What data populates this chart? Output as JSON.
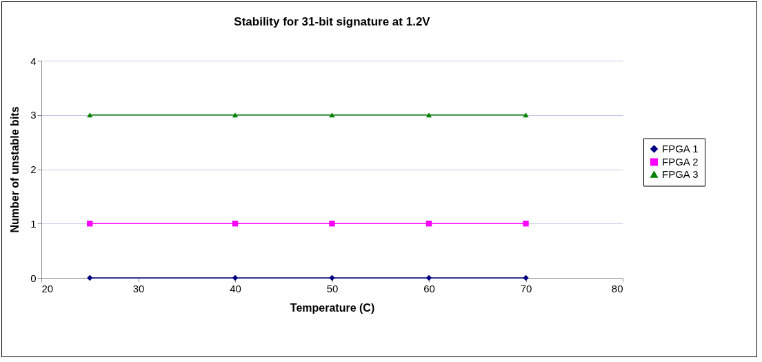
{
  "chart_data": {
    "type": "line",
    "title": "Stability for 31-bit signature at 1.2V",
    "xlabel": "Temperature (C)",
    "ylabel": "Number of unstable bits",
    "x": [
      25,
      40,
      50,
      60,
      70
    ],
    "series": [
      {
        "name": "FPGA 1",
        "color": "#000080",
        "marker": "diamond",
        "values": [
          0,
          0,
          0,
          0,
          0
        ]
      },
      {
        "name": "FPGA 2",
        "color": "#ff00ff",
        "marker": "square",
        "values": [
          1,
          1,
          1,
          1,
          1
        ]
      },
      {
        "name": "FPGA 3",
        "color": "#008000",
        "marker": "triangle",
        "values": [
          3,
          3,
          3,
          3,
          3
        ]
      }
    ],
    "xlim": [
      20,
      80
    ],
    "xticks": [
      20,
      30,
      40,
      50,
      60,
      70,
      80
    ],
    "ylim": [
      0,
      4
    ],
    "yticks": [
      0,
      1,
      2,
      3,
      4
    ],
    "grid": "y",
    "legend": "right",
    "line_style": "solid"
  }
}
